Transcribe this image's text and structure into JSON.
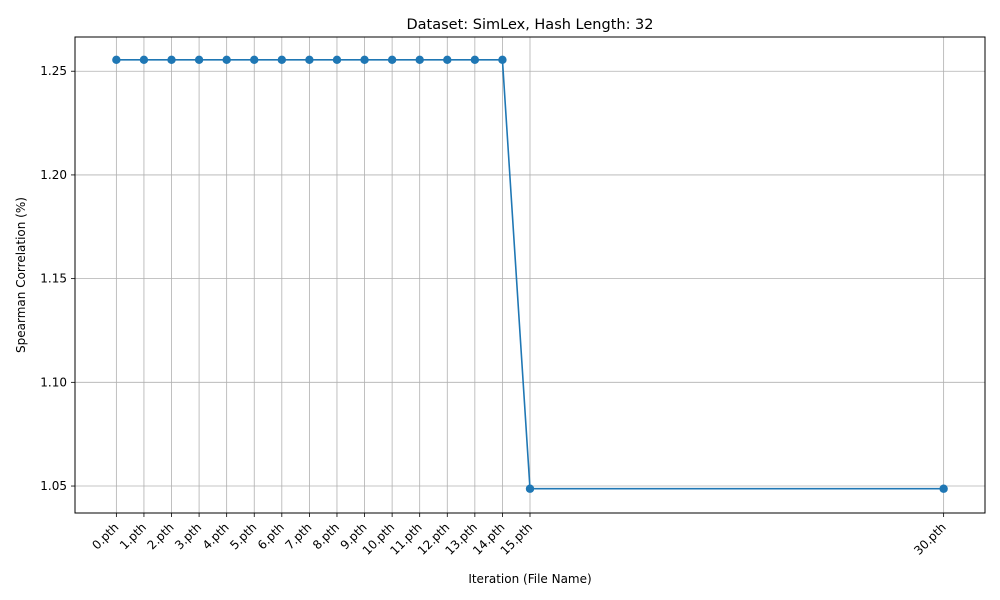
{
  "chart_data": {
    "type": "line",
    "title": "Dataset: SimLex, Hash Length: 32",
    "xlabel": "Iteration (File Name)",
    "ylabel": "Spearman Correlation (%)",
    "x": [
      0,
      1,
      2,
      3,
      4,
      5,
      6,
      7,
      8,
      9,
      10,
      11,
      12,
      13,
      14,
      15,
      30
    ],
    "categories": [
      "0.pth",
      "1.pth",
      "2.pth",
      "3.pth",
      "4.pth",
      "5.pth",
      "6.pth",
      "7.pth",
      "8.pth",
      "9.pth",
      "10.pth",
      "11.pth",
      "12.pth",
      "13.pth",
      "14.pth",
      "15.pth",
      "30.pth"
    ],
    "series": [
      {
        "values": [
          1.2555,
          1.2555,
          1.2555,
          1.2555,
          1.2555,
          1.2555,
          1.2555,
          1.2555,
          1.2555,
          1.2555,
          1.2555,
          1.2555,
          1.2555,
          1.2555,
          1.2555,
          1.0487,
          1.0487
        ]
      }
    ],
    "yticks": [
      1.05,
      1.1,
      1.15,
      1.2,
      1.25
    ],
    "ytick_labels": [
      "1.05",
      "1.10",
      "1.15",
      "1.20",
      "1.25"
    ],
    "xlim": [
      -1.5,
      31.5
    ],
    "ylim": [
      1.037,
      1.2665
    ],
    "grid": true,
    "marker": "circle",
    "line_color": "#1f77b4",
    "grid_color": "#b0b0b0"
  }
}
